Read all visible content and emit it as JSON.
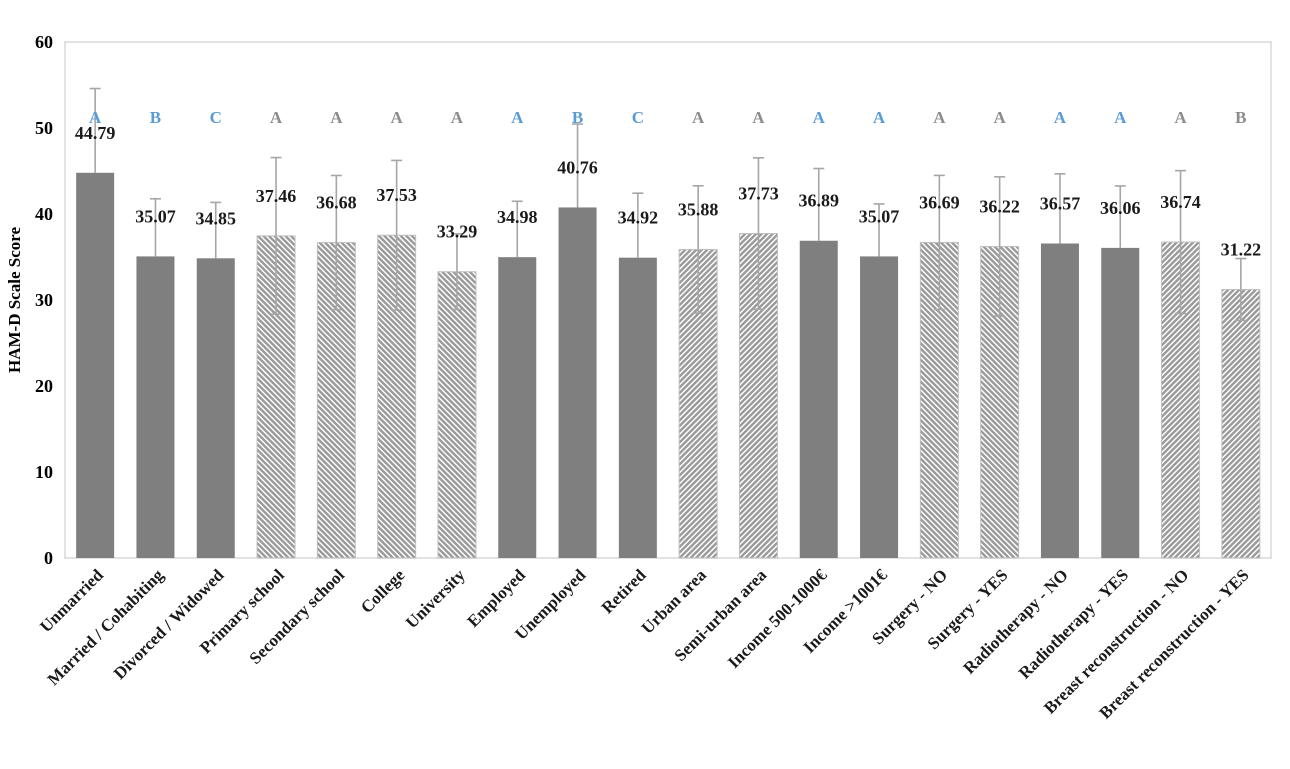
{
  "colors": {
    "bar_solid": "#7f7f7f",
    "hatch_line": "#9a9a9a",
    "hatch_outline": "#c0c0c0",
    "error_bar": "#a6a6a6",
    "letter_blue": "#5b9bd5",
    "letter_gray": "#8c8c8c",
    "plot_border": "#d9d9d9",
    "text": "#1a1a1a",
    "background": "#ffffff"
  },
  "chart_data": {
    "type": "bar",
    "title": "",
    "xlabel": "",
    "ylabel": "HAM-D Scale Score",
    "ylim": [
      0,
      60
    ],
    "yticks": [
      0,
      10,
      20,
      30,
      40,
      50,
      60
    ],
    "grid": false,
    "legend": "none",
    "value_label_format": "2-decimals",
    "bars": [
      {
        "category": "Unmarried",
        "value": 44.79,
        "error": 9.8,
        "letter": "A",
        "letter_color": "blue",
        "fill": "solid"
      },
      {
        "category": "Married / Cohabiting",
        "value": 35.07,
        "error": 6.7,
        "letter": "B",
        "letter_color": "blue",
        "fill": "solid"
      },
      {
        "category": "Divorced / Widowed",
        "value": 34.85,
        "error": 6.5,
        "letter": "C",
        "letter_color": "blue",
        "fill": "solid"
      },
      {
        "category": "Primary school",
        "value": 37.46,
        "error": 9.1,
        "letter": "A",
        "letter_color": "gray",
        "fill": "hatch_down"
      },
      {
        "category": "Secondary school",
        "value": 36.68,
        "error": 7.8,
        "letter": "A",
        "letter_color": "gray",
        "fill": "hatch_down"
      },
      {
        "category": "College",
        "value": 37.53,
        "error": 8.7,
        "letter": "A",
        "letter_color": "gray",
        "fill": "hatch_down"
      },
      {
        "category": "University",
        "value": 33.29,
        "error": 4.4,
        "letter": "A",
        "letter_color": "gray",
        "fill": "hatch_down"
      },
      {
        "category": "Employed",
        "value": 34.98,
        "error": 6.5,
        "letter": "A",
        "letter_color": "blue",
        "fill": "solid"
      },
      {
        "category": "Unemployed",
        "value": 40.76,
        "error": 9.7,
        "letter": "B",
        "letter_color": "blue",
        "fill": "solid"
      },
      {
        "category": "Retired",
        "value": 34.92,
        "error": 7.5,
        "letter": "C",
        "letter_color": "blue",
        "fill": "solid"
      },
      {
        "category": "Urban area",
        "value": 35.88,
        "error": 7.4,
        "letter": "A",
        "letter_color": "gray",
        "fill": "hatch_up"
      },
      {
        "category": "Semi-urban area",
        "value": 37.73,
        "error": 8.8,
        "letter": "A",
        "letter_color": "gray",
        "fill": "hatch_up"
      },
      {
        "category": "Income 500-1000€",
        "value": 36.89,
        "error": 8.4,
        "letter": "A",
        "letter_color": "blue",
        "fill": "solid"
      },
      {
        "category": "Income >1001€",
        "value": 35.07,
        "error": 6.1,
        "letter": "A",
        "letter_color": "blue",
        "fill": "solid"
      },
      {
        "category": "Surgery - NO",
        "value": 36.69,
        "error": 7.8,
        "letter": "A",
        "letter_color": "gray",
        "fill": "hatch_down"
      },
      {
        "category": "Surgery - YES",
        "value": 36.22,
        "error": 8.1,
        "letter": "A",
        "letter_color": "gray",
        "fill": "hatch_down"
      },
      {
        "category": "Radiotherapy - NO",
        "value": 36.57,
        "error": 8.1,
        "letter": "A",
        "letter_color": "blue",
        "fill": "solid"
      },
      {
        "category": "Radiotherapy - YES",
        "value": 36.06,
        "error": 7.2,
        "letter": "A",
        "letter_color": "blue",
        "fill": "solid"
      },
      {
        "category": "Breast reconstruction - NO",
        "value": 36.74,
        "error": 8.3,
        "letter": "A",
        "letter_color": "gray",
        "fill": "hatch_up"
      },
      {
        "category": "Breast reconstruction - YES",
        "value": 31.22,
        "error": 3.6,
        "letter": "B",
        "letter_color": "gray",
        "fill": "hatch_up"
      }
    ]
  }
}
